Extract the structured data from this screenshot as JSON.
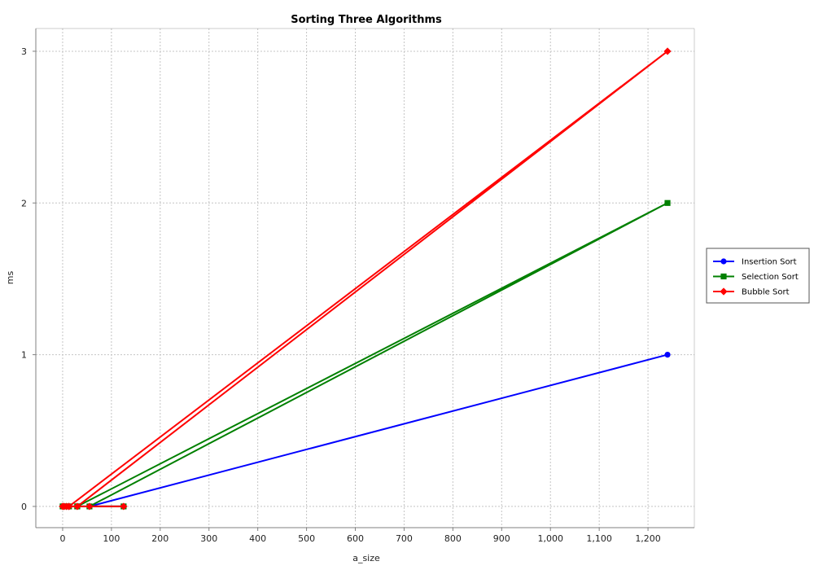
{
  "chart_data": {
    "type": "line",
    "title": "Sorting Three Algorithms",
    "xlabel": "a_size",
    "ylabel": "ms",
    "xlim": [
      -55,
      1295
    ],
    "ylim": [
      -0.14,
      3.15
    ],
    "x_ticks": [
      0,
      100,
      200,
      300,
      400,
      500,
      600,
      700,
      800,
      900,
      1000,
      1100,
      1200
    ],
    "x_tick_labels": [
      "0",
      "100",
      "200",
      "300",
      "400",
      "500",
      "600",
      "700",
      "800",
      "900",
      "1,000",
      "1,100",
      "1,200"
    ],
    "y_ticks": [
      0,
      1,
      2,
      3
    ],
    "y_tick_labels": [
      "0",
      "1",
      "2",
      "3"
    ],
    "grid": true,
    "legend_position": "right",
    "series": [
      {
        "name": "Insertion Sort",
        "color": "#0000ff",
        "marker": "circle",
        "x": [
          0,
          3,
          8,
          13,
          30,
          55,
          1240,
          55,
          125
        ],
        "y": [
          0,
          0,
          0,
          0,
          0,
          0,
          1,
          0,
          0
        ]
      },
      {
        "name": "Selection Sort",
        "color": "#008000",
        "marker": "square",
        "x": [
          0,
          3,
          8,
          13,
          30,
          55,
          1240,
          30,
          125
        ],
        "y": [
          0,
          0,
          0,
          0,
          0,
          0,
          2,
          0,
          0
        ]
      },
      {
        "name": "Bubble Sort",
        "color": "#ff0000",
        "marker": "diamond",
        "x": [
          0,
          3,
          8,
          13,
          30,
          1240,
          13,
          55,
          125
        ],
        "y": [
          0,
          0,
          0,
          0,
          0,
          3,
          0,
          0,
          0
        ]
      }
    ]
  }
}
